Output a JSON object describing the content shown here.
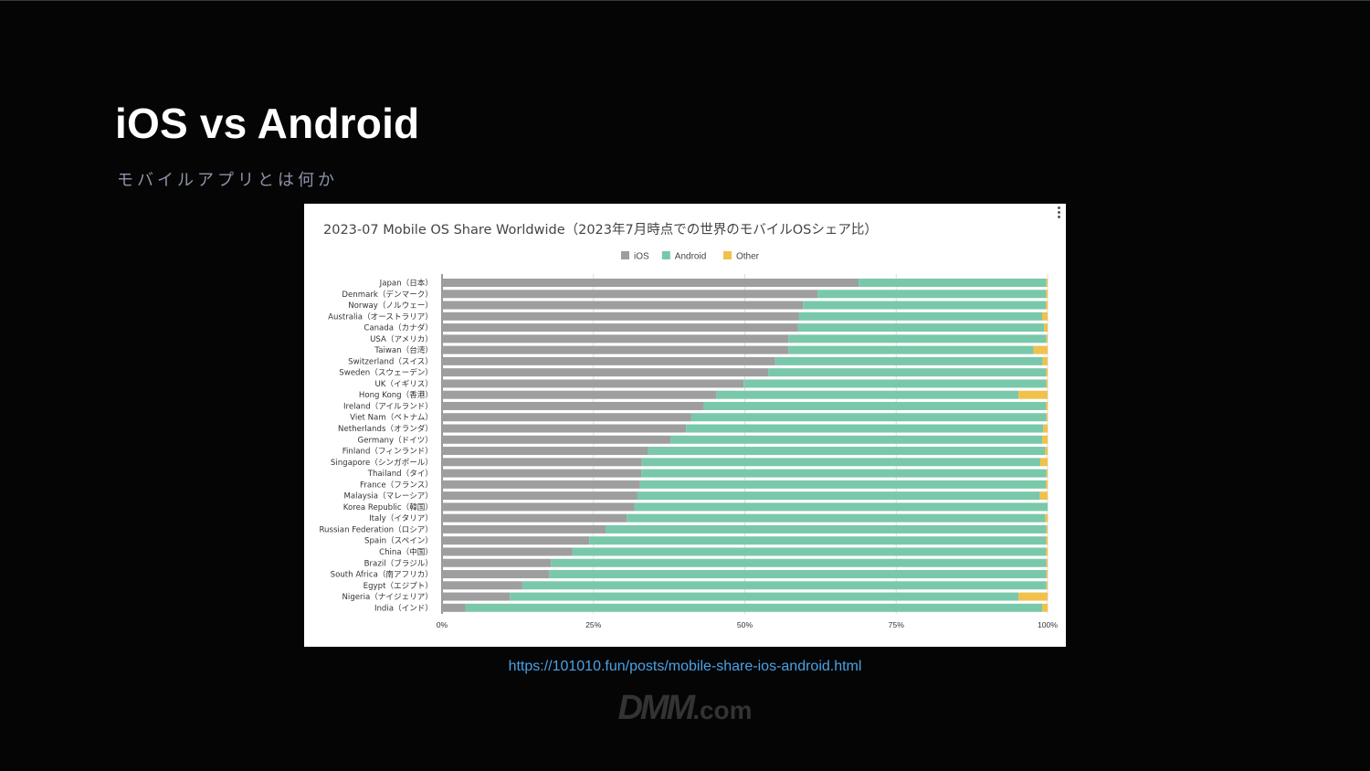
{
  "slide": {
    "title": "iOS vs Android",
    "subtitle": "モバイルアプリとは何か",
    "source_link": "https://101010.fun/posts/mobile-share-ios-android.html",
    "logo": {
      "brand": "DMM",
      "suffix": ".com"
    }
  },
  "colors": {
    "background": "#050505",
    "ios": "#9e9e9e",
    "android": "#79c8aa",
    "other": "#f0c14b",
    "link": "#4aa3e6"
  },
  "chart_data": {
    "type": "bar",
    "orientation": "horizontal",
    "stacked": true,
    "title": "2023-07 Mobile OS Share Worldwide（2023年7月時点での世界のモバイルOSシェア比）",
    "xlabel": "",
    "ylabel": "",
    "xlim": [
      0,
      100
    ],
    "x_ticks": [
      "0%",
      "25%",
      "50%",
      "75%",
      "100%"
    ],
    "x_tick_values": [
      0,
      25,
      50,
      75,
      100
    ],
    "grid": true,
    "legend_position": "top-center",
    "categories": [
      "Japan（日本）",
      "Denmark（デンマーク）",
      "Norway（ノルウェー）",
      "Australia（オーストラリア）",
      "Canada（カナダ）",
      "USA（アメリカ）",
      "Taiwan（台湾）",
      "Switzerland（スイス）",
      "Sweden（スウェーデン）",
      "UK（イギリス）",
      "Hong Kong（香港）",
      "Ireland（アイルランド）",
      "Viet Nam（ベトナム）",
      "Netherlands（オランダ）",
      "Germany（ドイツ）",
      "Finland（フィンランド）",
      "Singapore（シンガポール）",
      "Thailand（タイ）",
      "France（フランス）",
      "Malaysia（マレーシア）",
      "Korea Republic（韓国）",
      "Italy（イタリア）",
      "Russian Federation（ロシア）",
      "Spain（スペイン）",
      "China（中国）",
      "Brazil（ブラジル）",
      "South Africa（南アフリカ）",
      "Egypt（エジプト）",
      "Nigeria（ナイジェリア）",
      "India（インド）"
    ],
    "series": [
      {
        "name": "iOS",
        "values": [
          68.8,
          62.0,
          59.6,
          58.9,
          58.8,
          57.2,
          57.2,
          55.0,
          53.9,
          49.8,
          45.3,
          43.2,
          41.1,
          40.3,
          37.7,
          34.0,
          33.0,
          32.9,
          32.7,
          32.2,
          31.8,
          30.5,
          27.0,
          24.3,
          21.5,
          18.0,
          17.7,
          13.2,
          11.2,
          3.9
        ]
      },
      {
        "name": "Android",
        "values": [
          31.0,
          37.7,
          40.1,
          40.2,
          40.6,
          42.6,
          40.5,
          44.2,
          45.8,
          50.0,
          49.9,
          56.5,
          58.7,
          59.0,
          61.4,
          65.6,
          65.8,
          66.9,
          67.0,
          66.5,
          68.2,
          69.1,
          72.8,
          75.4,
          78.2,
          81.8,
          82.1,
          86.6,
          84.0,
          95.2
        ]
      },
      {
        "name": "Other",
        "values": [
          0.2,
          0.3,
          0.3,
          0.9,
          0.6,
          0.2,
          2.3,
          0.8,
          0.3,
          0.2,
          4.8,
          0.3,
          0.2,
          0.7,
          0.9,
          0.4,
          1.2,
          0.2,
          0.3,
          1.3,
          0.0,
          0.4,
          0.2,
          0.3,
          0.3,
          0.2,
          0.2,
          0.2,
          4.8,
          0.9
        ]
      }
    ]
  }
}
